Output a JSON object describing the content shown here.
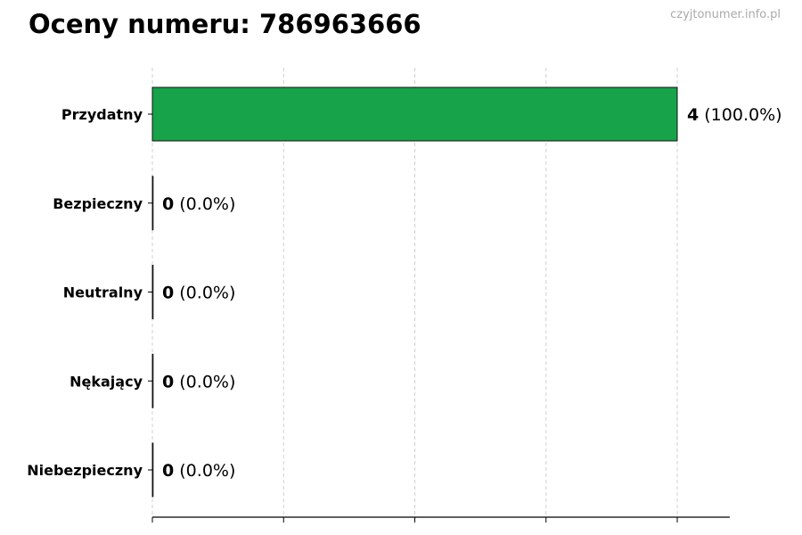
{
  "chart_data": {
    "type": "bar",
    "orientation": "horizontal",
    "title": "Oceny numeru: 786963666",
    "categories": [
      "Przydatny",
      "Bezpieczny",
      "Neutralny",
      "Nękający",
      "Niebezpieczny"
    ],
    "values": [
      4,
      0,
      0,
      0,
      0
    ],
    "percent_labels": [
      "(100.0%)",
      "(0.0%)",
      "(0.0%)",
      "(0.0%)",
      "(0.0%)"
    ],
    "bar_colors": [
      "#16a34a",
      "#16a34a",
      "#16a34a",
      "#16a34a",
      "#16a34a"
    ],
    "xlim": [
      0,
      4.4
    ],
    "xticks": [
      0,
      1,
      2,
      3,
      4
    ],
    "xtick_labels_shown": false,
    "grid": "vertical dashed",
    "xlabel": "",
    "ylabel": ""
  },
  "watermark": "czyjtonumer.info.pl"
}
